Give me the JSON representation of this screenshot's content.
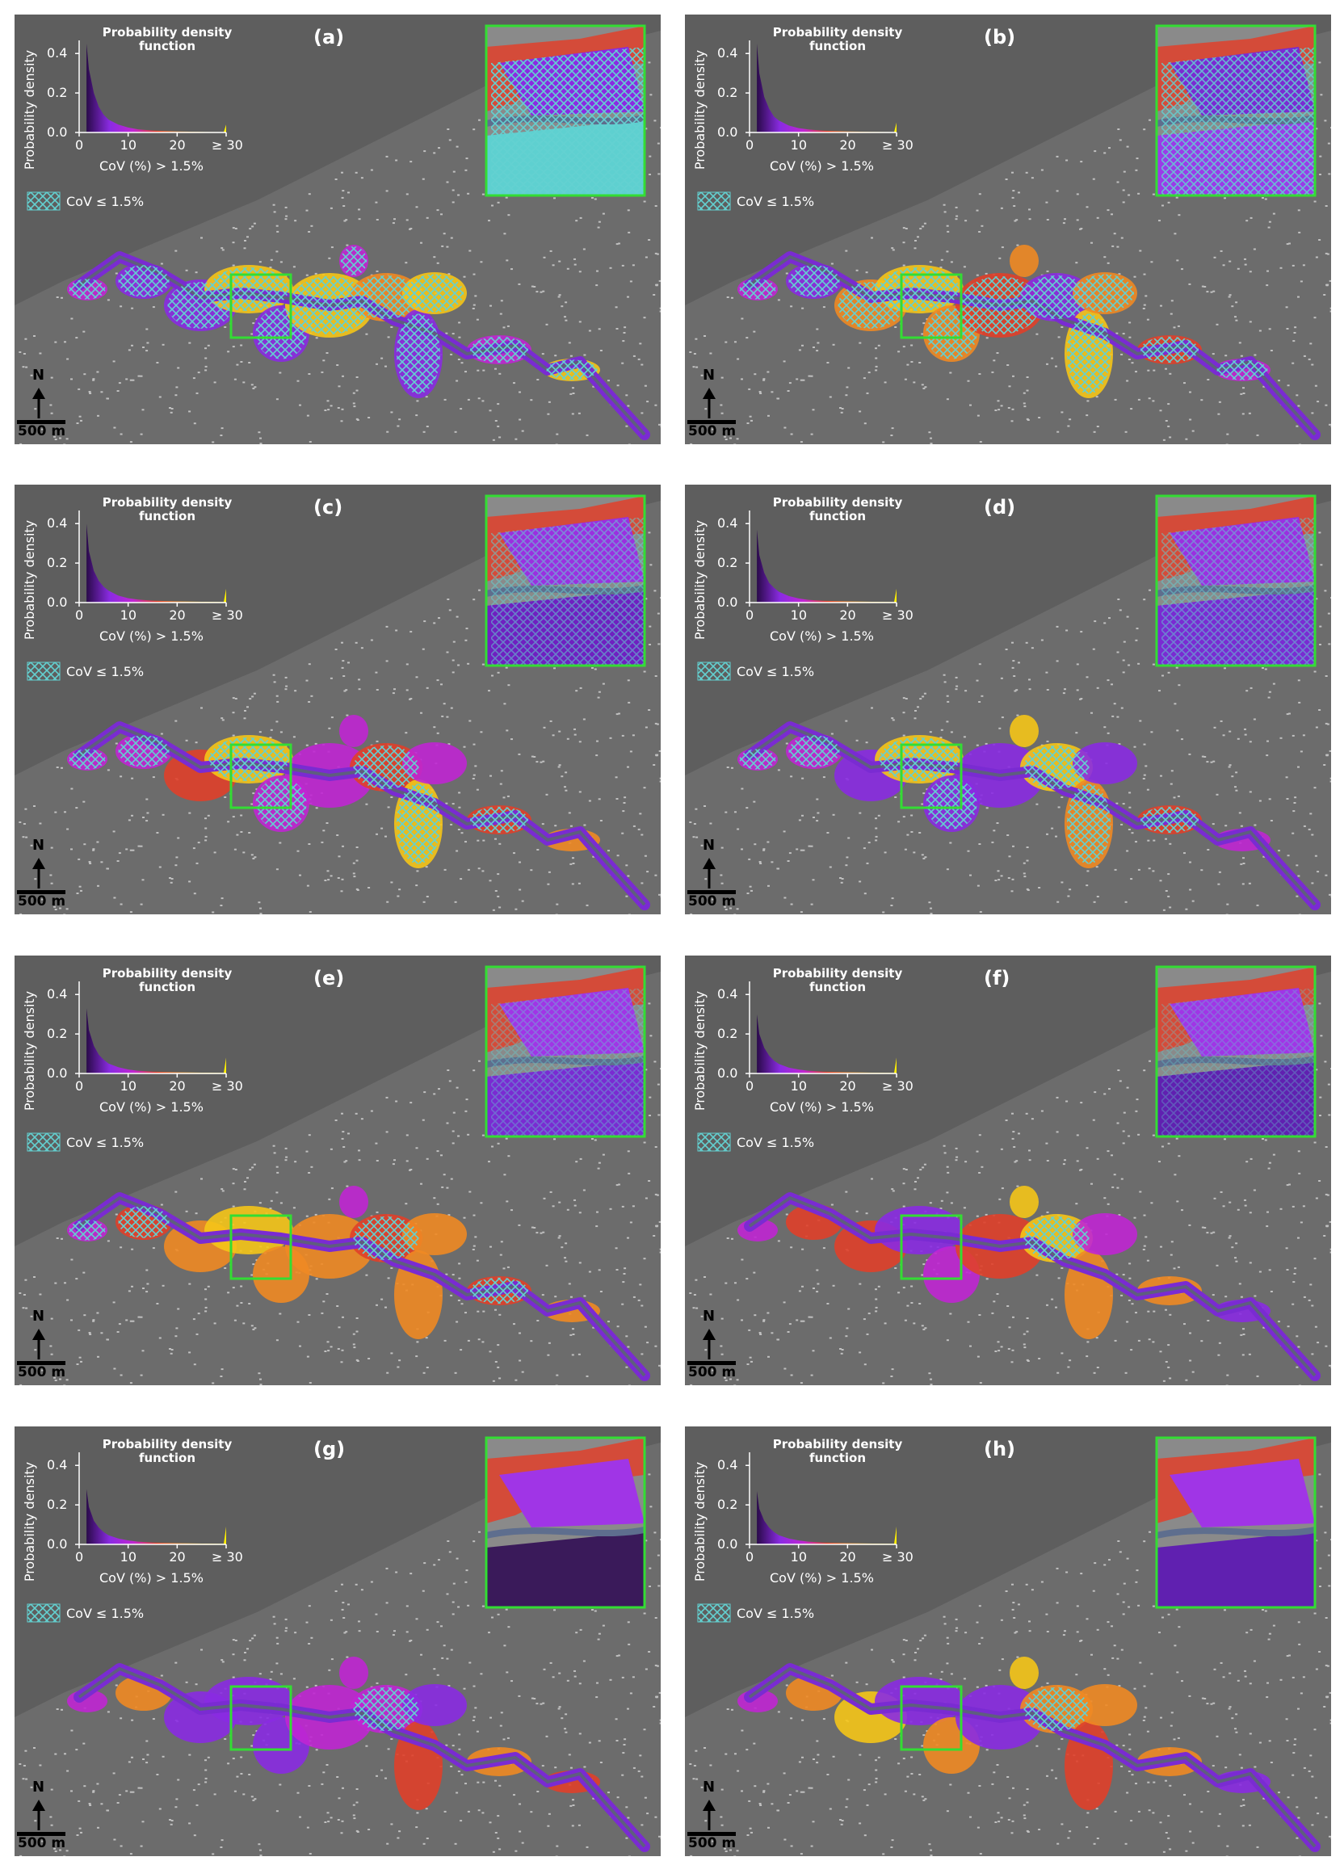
{
  "figure": {
    "panels": [
      {
        "label": "(a)"
      },
      {
        "label": "(b)"
      },
      {
        "label": "(c)"
      },
      {
        "label": "(d)"
      },
      {
        "label": "(e)"
      },
      {
        "label": "(f)"
      },
      {
        "label": "(g)"
      },
      {
        "label": "(h)"
      }
    ],
    "pdf_title": "Probability density function",
    "pdf_ylabel": "Probability density",
    "pdf_yticks": [
      "0.0",
      "0.2",
      "0.4"
    ],
    "pdf_xticks": [
      "0",
      "10",
      "20",
      "≥ 30"
    ],
    "pdf_xlabel": "CoV (%) > 1.5%",
    "legend_label": "CoV  ≤  1.5%",
    "north_label": "N",
    "scale_label": "500 m",
    "colors": {
      "background_terrain": "#6c6c6c",
      "sea": "#5e5e5e",
      "buildings": "#dcdcdc",
      "hatch": "#63d1d1",
      "inset_border": "#33dd33",
      "colormap": [
        "#2a0a4a",
        "#8a2be2",
        "#c026d3",
        "#e0402a",
        "#f08a24",
        "#f5c518",
        "#ffee00"
      ]
    }
  },
  "chart_data": {
    "type": "area",
    "title": "Probability density function",
    "xlabel": "CoV (%) > 1.5%",
    "ylabel": "Probability density",
    "xlim": [
      0,
      30
    ],
    "ylim": [
      0,
      0.45
    ],
    "x_ticks": [
      "0",
      "10",
      "20",
      "≥ 30"
    ],
    "y_ticks": [
      "0.0",
      "0.2",
      "0.4"
    ],
    "x": [
      1.5,
      2,
      3,
      4,
      5,
      6,
      8,
      10,
      12,
      15,
      20,
      25,
      29.5,
      30
    ],
    "series": [
      {
        "name": "(a)",
        "values": [
          0.45,
          0.32,
          0.2,
          0.13,
          0.09,
          0.065,
          0.04,
          0.025,
          0.016,
          0.01,
          0.005,
          0.003,
          0.002,
          0.04
        ]
      },
      {
        "name": "(b)",
        "values": [
          0.45,
          0.3,
          0.18,
          0.12,
          0.08,
          0.06,
          0.035,
          0.022,
          0.015,
          0.009,
          0.005,
          0.003,
          0.002,
          0.05
        ]
      },
      {
        "name": "(c)",
        "values": [
          0.4,
          0.26,
          0.16,
          0.11,
          0.08,
          0.06,
          0.035,
          0.022,
          0.015,
          0.01,
          0.006,
          0.004,
          0.003,
          0.07
        ]
      },
      {
        "name": "(d)",
        "values": [
          0.37,
          0.24,
          0.15,
          0.1,
          0.075,
          0.055,
          0.033,
          0.021,
          0.014,
          0.009,
          0.006,
          0.004,
          0.003,
          0.07
        ]
      },
      {
        "name": "(e)",
        "values": [
          0.33,
          0.22,
          0.14,
          0.095,
          0.07,
          0.05,
          0.032,
          0.02,
          0.014,
          0.009,
          0.006,
          0.004,
          0.003,
          0.08
        ]
      },
      {
        "name": "(f)",
        "values": [
          0.3,
          0.2,
          0.13,
          0.09,
          0.065,
          0.048,
          0.03,
          0.02,
          0.014,
          0.009,
          0.006,
          0.004,
          0.003,
          0.08
        ]
      },
      {
        "name": "(g)",
        "values": [
          0.28,
          0.19,
          0.12,
          0.085,
          0.062,
          0.046,
          0.03,
          0.02,
          0.014,
          0.009,
          0.006,
          0.004,
          0.003,
          0.09
        ]
      },
      {
        "name": "(h)",
        "values": [
          0.27,
          0.18,
          0.12,
          0.085,
          0.062,
          0.046,
          0.03,
          0.02,
          0.014,
          0.009,
          0.006,
          0.004,
          0.003,
          0.09
        ]
      }
    ]
  }
}
